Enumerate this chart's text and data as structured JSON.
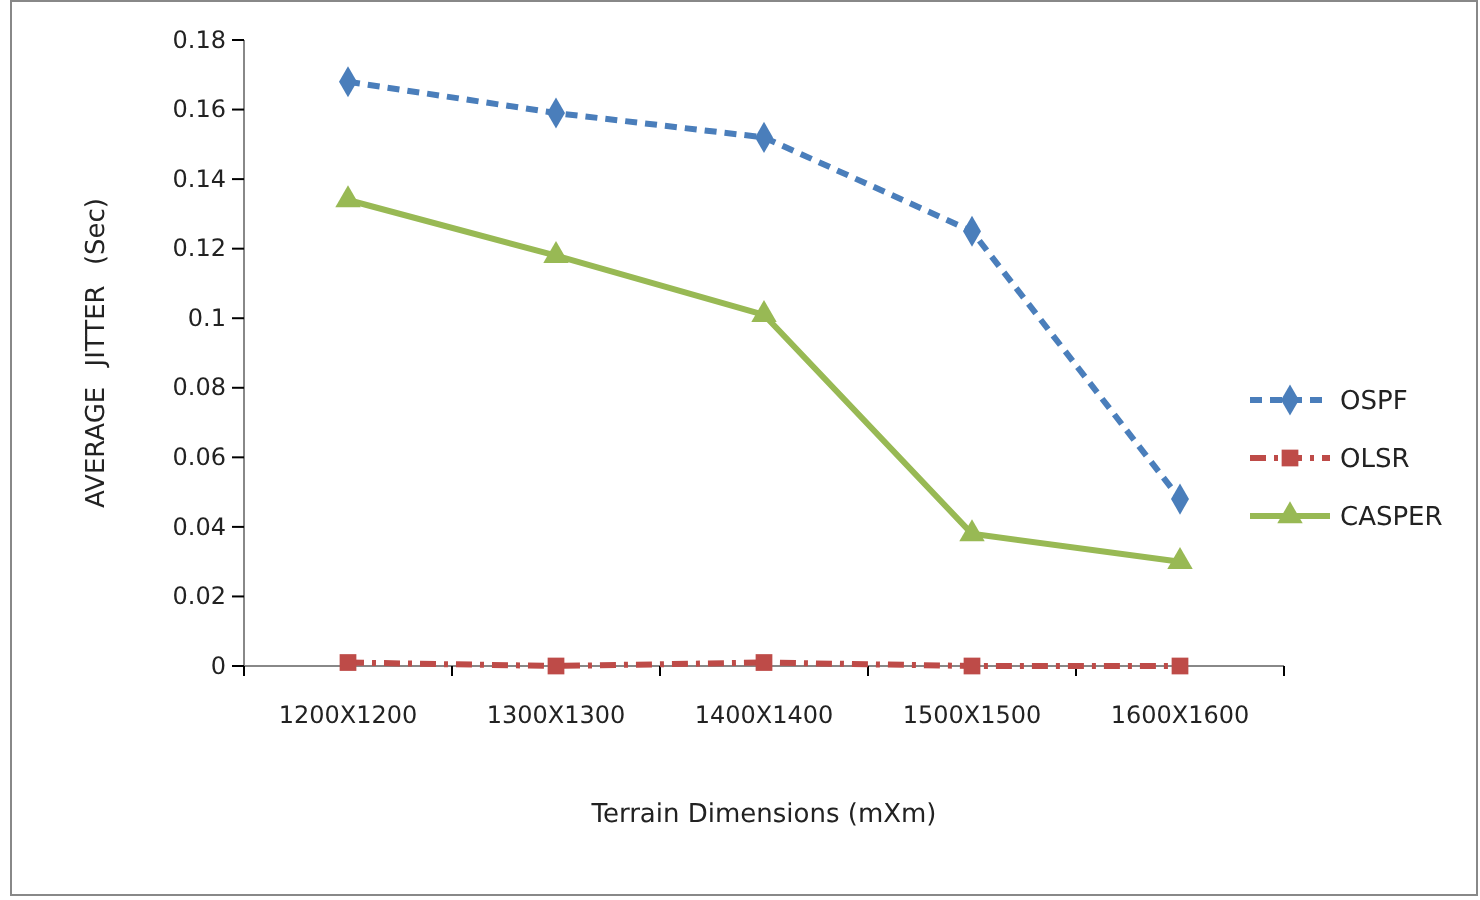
{
  "chart_data": {
    "type": "line",
    "xlabel": "Terrain Dimensions (mXm)",
    "ylabel": "AVERAGE JITTER (Sec)",
    "categories": [
      "1200X1200",
      "1300X1300",
      "1400X1400",
      "1500X1500",
      "1600X1600"
    ],
    "ylim": [
      0,
      0.18
    ],
    "yticks": [
      0,
      0.02,
      0.04,
      0.06,
      0.08,
      {
        "value": 0.1,
        "label": "0.1"
      },
      0.12,
      0.14,
      0.16,
      0.18
    ],
    "legend": "right",
    "grid": false,
    "series": [
      {
        "name": "OSPF",
        "color": "#4a7ebb",
        "values": [
          0.168,
          0.159,
          0.152,
          0.125,
          0.048
        ],
        "marker": "diamond",
        "line_style": "dashed"
      },
      {
        "name": "OLSR",
        "color": "#be4b48",
        "values": [
          0.001,
          0,
          0.001,
          0,
          0
        ],
        "marker": "square",
        "line_style": "dashdot"
      },
      {
        "name": "CASPER",
        "color": "#98b954",
        "values": [
          0.134,
          0.118,
          0.101,
          0.038,
          0.03
        ],
        "marker": "triangle",
        "line_style": "solid"
      }
    ]
  }
}
